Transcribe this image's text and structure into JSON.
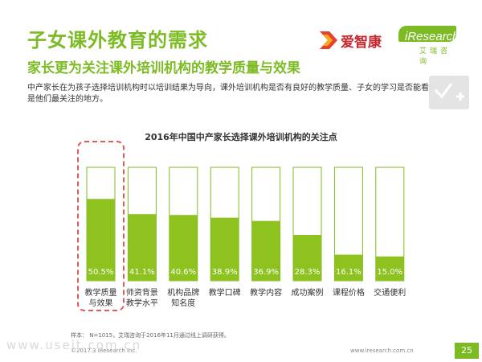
{
  "header": {
    "title": "子女课外教育的需求",
    "subtitle": "家长更为关注课外培训机构的教学质量与效果",
    "description": "中产家长在为孩子选择培训机构时以培训结果为导向，课外培训机构是否有良好的教学质量、子女的学习是否能看到效果是他们最关注的地方。"
  },
  "logos": {
    "brand1": "爱智康",
    "brand2": "iResearch",
    "brand2_sub": "艾瑞咨询"
  },
  "chart_data": {
    "type": "bar",
    "title": "2016年中国中产家长选择课外培训机构的关注点",
    "categories": [
      "教学质量与效果",
      "师资背景教学水平",
      "机构品牌知名度",
      "教学口碑",
      "教学内容",
      "成功案例",
      "课程价格",
      "交通便利"
    ],
    "category_lines": [
      [
        "教学质量",
        "与效果"
      ],
      [
        "师资背景",
        "教学水平"
      ],
      [
        "机构品牌",
        "知名度"
      ],
      [
        "教学口碑"
      ],
      [
        "教学内容"
      ],
      [
        "成功案例"
      ],
      [
        "课程价格"
      ],
      [
        "交通便利"
      ]
    ],
    "values": [
      50.5,
      41.1,
      40.6,
      38.9,
      36.9,
      28.3,
      16.1,
      15.0
    ],
    "value_labels": [
      "50.5%",
      "41.1%",
      "40.6%",
      "38.9%",
      "36.9%",
      "28.3%",
      "16.1%",
      "15.0%"
    ],
    "ylim": [
      0,
      70
    ],
    "highlight_index": 0,
    "bar_color": "#8dc21f",
    "outline_color": "#7dbb25",
    "highlight_color": "#e05a5a"
  },
  "footer": {
    "note": "样本：  N=1015，艾瑞咨询于2016年11月通过线上调研获得。",
    "copyright": "©2017.3  iResearch Inc.",
    "site": "www.iresearch.com.cn",
    "watermark": "www.useit.com.cn",
    "page": "25"
  }
}
